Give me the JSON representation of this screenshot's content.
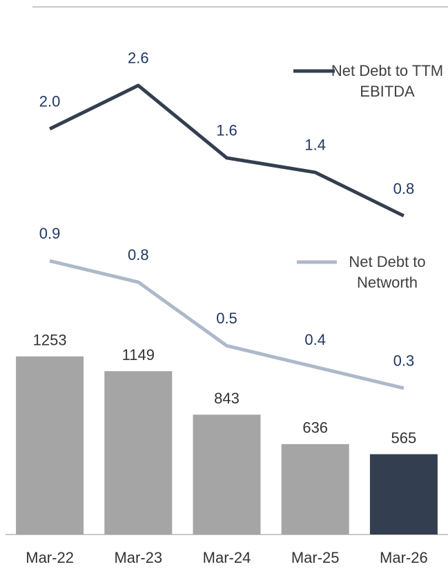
{
  "chart_data": [
    {
      "type": "bar",
      "categories": [
        "Mar-22",
        "Mar-23",
        "Mar-24",
        "Mar-25",
        "Mar-26"
      ],
      "values": [
        1253,
        1149,
        843,
        636,
        565
      ],
      "colors": [
        "#a5a5a5",
        "#a5a5a5",
        "#a5a5a5",
        "#a5a5a5",
        "#333f50"
      ],
      "ylim": [
        0,
        3760
      ]
    },
    {
      "type": "line",
      "series": [
        {
          "name": "Net Debt to TTM EBITDA",
          "color": "#333f50",
          "values": [
            2.0,
            2.6,
            1.6,
            1.4,
            0.8
          ]
        }
      ],
      "value_labels": [
        "2.0",
        "2.6",
        "1.6",
        "1.4",
        "0.8"
      ],
      "ylim": [
        -3.6,
        3.78
      ]
    },
    {
      "type": "line",
      "series": [
        {
          "name": "Net Debt to Networth",
          "color": "#adb9ca",
          "values": [
            0.9,
            0.8,
            0.5,
            0.4,
            0.3
          ]
        }
      ],
      "ylim": [
        -0.39,
        2.13
      ]
    }
  ]
}
